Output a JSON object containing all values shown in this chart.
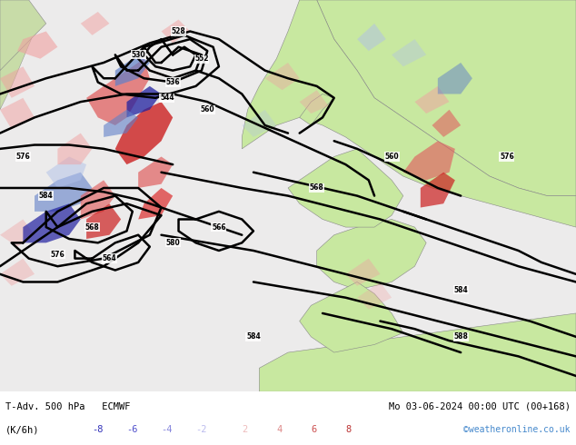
{
  "title_left": "T-Adv. 500 hPa   ECMWF",
  "title_right": "Mo 03-06-2024 00:00 UTC (00+168)",
  "xlabel": "(K/6h)",
  "legend_values": [
    -8,
    -6,
    -4,
    -2,
    2,
    4,
    6,
    8
  ],
  "legend_colors_neg": [
    "#3030b8",
    "#5050cc",
    "#8888dd",
    "#bbbbee"
  ],
  "legend_colors_pos": [
    "#eebbbb",
    "#dd8888",
    "#cc5050",
    "#bb3030"
  ],
  "watermark": "©weatheronline.co.uk",
  "fig_width": 6.34,
  "fig_height": 4.9,
  "dpi": 100,
  "bg_sea": "#e8e8e8",
  "bg_land": "#c8e8a0",
  "bg_ocean_light": "#f0f0f0"
}
